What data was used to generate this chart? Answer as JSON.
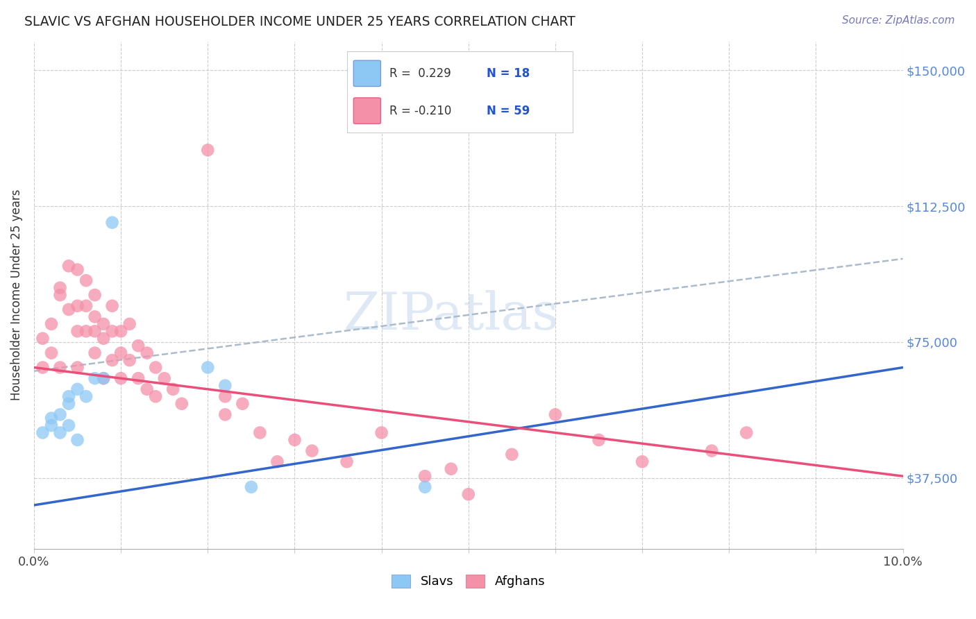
{
  "title": "SLAVIC VS AFGHAN HOUSEHOLDER INCOME UNDER 25 YEARS CORRELATION CHART",
  "source": "Source: ZipAtlas.com",
  "ylabel": "Householder Income Under 25 years",
  "xlim": [
    0.0,
    0.1
  ],
  "ylim": [
    18000,
    158000
  ],
  "yticks": [
    37500,
    75000,
    112500,
    150000
  ],
  "ytick_labels": [
    "$37,500",
    "$75,000",
    "$112,500",
    "$150,000"
  ],
  "watermark_text": "ZIPatlas",
  "legend_slavs_R": " 0.229",
  "legend_slavs_N": "18",
  "legend_afghans_R": "-0.210",
  "legend_afghans_N": "59",
  "slavs_color": "#8DC8F5",
  "afghans_color": "#F490A8",
  "trend_slavs_color": "#3366CC",
  "trend_afghans_color": "#E8507A",
  "trend_dashed_color": "#AABBCC",
  "slavs_x": [
    0.001,
    0.002,
    0.002,
    0.003,
    0.003,
    0.004,
    0.004,
    0.004,
    0.005,
    0.005,
    0.006,
    0.007,
    0.008,
    0.009,
    0.02,
    0.025,
    0.022,
    0.045
  ],
  "slavs_y": [
    50000,
    52000,
    54000,
    50000,
    55000,
    58000,
    52000,
    60000,
    62000,
    48000,
    60000,
    65000,
    65000,
    108000,
    68000,
    35000,
    63000,
    35000
  ],
  "afghans_x": [
    0.001,
    0.001,
    0.002,
    0.002,
    0.003,
    0.003,
    0.003,
    0.004,
    0.004,
    0.005,
    0.005,
    0.005,
    0.005,
    0.006,
    0.006,
    0.006,
    0.007,
    0.007,
    0.007,
    0.007,
    0.008,
    0.008,
    0.008,
    0.009,
    0.009,
    0.009,
    0.01,
    0.01,
    0.01,
    0.011,
    0.011,
    0.012,
    0.012,
    0.013,
    0.013,
    0.014,
    0.014,
    0.015,
    0.016,
    0.017,
    0.02,
    0.022,
    0.022,
    0.024,
    0.026,
    0.028,
    0.03,
    0.032,
    0.036,
    0.04,
    0.045,
    0.048,
    0.05,
    0.055,
    0.06,
    0.065,
    0.07,
    0.078,
    0.082
  ],
  "afghans_y": [
    68000,
    76000,
    72000,
    80000,
    90000,
    88000,
    68000,
    96000,
    84000,
    95000,
    85000,
    78000,
    68000,
    92000,
    85000,
    78000,
    88000,
    82000,
    78000,
    72000,
    80000,
    76000,
    65000,
    85000,
    78000,
    70000,
    78000,
    72000,
    65000,
    80000,
    70000,
    74000,
    65000,
    72000,
    62000,
    68000,
    60000,
    65000,
    62000,
    58000,
    128000,
    60000,
    55000,
    58000,
    50000,
    42000,
    48000,
    45000,
    42000,
    50000,
    38000,
    40000,
    33000,
    44000,
    55000,
    48000,
    42000,
    45000,
    50000
  ],
  "slavs_trend_x0": 0.0,
  "slavs_trend_y0": 30000,
  "slavs_trend_x1": 0.1,
  "slavs_trend_y1": 68000,
  "afghans_trend_x0": 0.0,
  "afghans_trend_y0": 68000,
  "afghans_trend_x1": 0.1,
  "afghans_trend_y1": 38000,
  "dashed_trend_x0": 0.0,
  "dashed_trend_y0": 67000,
  "dashed_trend_x1": 0.1,
  "dashed_trend_y1": 98000
}
